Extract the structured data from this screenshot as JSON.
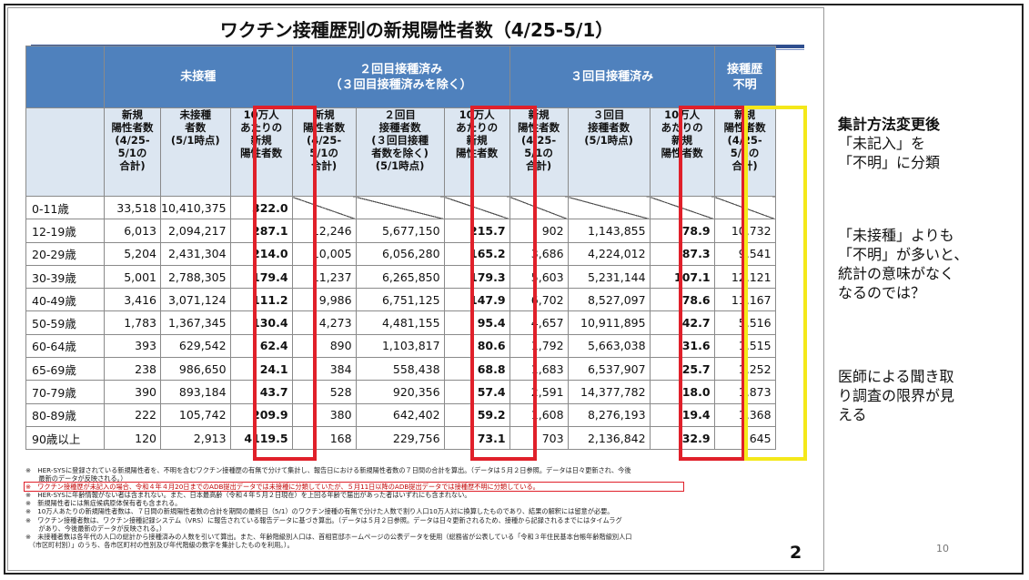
{
  "title": "ワクチン接種歴別の新規陽性者数（4/25-5/1）",
  "group_headers": {
    "unvax": "未接種",
    "dose2": "２回目接種済み\n（３回目接種済みを除く）",
    "dose3": "３回目接種済み",
    "unknown": "接種歴\n不明"
  },
  "sub_headers": {
    "unvax_new": "新規\n陽性者数\n(4/25-\n5/1の\n合計)",
    "unvax_pop": "未接種\n者数\n(5/1時点)",
    "unvax_rate": "10万人\nあたりの\n新規\n陽性者数",
    "dose2_new": "新規\n陽性者数\n(4/25-\n5/1の\n合計)",
    "dose2_pop": "２回目\n接種者数\n(３回目接種\n者数を除く)\n(5/1時点)",
    "dose2_rate": "10万人\nあたりの\n新規\n陽性者数",
    "dose3_new": "新規\n陽性者数\n(4/25-\n5/1の\n合計)",
    "dose3_pop": "３回目\n接種者数\n(5/1時点)",
    "dose3_rate": "10万人\nあたりの\n新規\n陽性者数",
    "unknown_new": "新規\n陽性者数\n(4/25-\n5/1の\n合計)"
  },
  "rows": [
    {
      "age": "0-11歳",
      "u_new": "33,518",
      "u_pop": "10,410,375",
      "u_rate": "322.0",
      "d2_new": "",
      "d2_pop": "",
      "d2_rate": "",
      "d3_new": "",
      "d3_pop": "",
      "d3_rate": "",
      "unk": ""
    },
    {
      "age": "12-19歳",
      "u_new": "6,013",
      "u_pop": "2,094,217",
      "u_rate": "287.1",
      "d2_new": "12,246",
      "d2_pop": "5,677,150",
      "d2_rate": "215.7",
      "d3_new": "902",
      "d3_pop": "1,143,855",
      "d3_rate": "78.9",
      "unk": "10,732"
    },
    {
      "age": "20-29歳",
      "u_new": "5,204",
      "u_pop": "2,431,304",
      "u_rate": "214.0",
      "d2_new": "10,005",
      "d2_pop": "6,056,280",
      "d2_rate": "165.2",
      "d3_new": "3,686",
      "d3_pop": "4,224,012",
      "d3_rate": "87.3",
      "unk": "9,541"
    },
    {
      "age": "30-39歳",
      "u_new": "5,001",
      "u_pop": "2,788,305",
      "u_rate": "179.4",
      "d2_new": "11,237",
      "d2_pop": "6,265,850",
      "d2_rate": "179.3",
      "d3_new": "5,603",
      "d3_pop": "5,231,144",
      "d3_rate": "107.1",
      "unk": "12,121"
    },
    {
      "age": "40-49歳",
      "u_new": "3,416",
      "u_pop": "3,071,124",
      "u_rate": "111.2",
      "d2_new": "9,986",
      "d2_pop": "6,751,125",
      "d2_rate": "147.9",
      "d3_new": "6,702",
      "d3_pop": "8,527,097",
      "d3_rate": "78.6",
      "unk": "11,167"
    },
    {
      "age": "50-59歳",
      "u_new": "1,783",
      "u_pop": "1,367,345",
      "u_rate": "130.4",
      "d2_new": "4,273",
      "d2_pop": "4,481,155",
      "d2_rate": "95.4",
      "d3_new": "4,657",
      "d3_pop": "10,911,895",
      "d3_rate": "42.7",
      "unk": "5,516"
    },
    {
      "age": "60-64歳",
      "u_new": "393",
      "u_pop": "629,542",
      "u_rate": "62.4",
      "d2_new": "890",
      "d2_pop": "1,103,817",
      "d2_rate": "80.6",
      "d3_new": "1,792",
      "d3_pop": "5,663,038",
      "d3_rate": "31.6",
      "unk": "1,515"
    },
    {
      "age": "65-69歳",
      "u_new": "238",
      "u_pop": "986,650",
      "u_rate": "24.1",
      "d2_new": "384",
      "d2_pop": "558,438",
      "d2_rate": "68.8",
      "d3_new": "1,683",
      "d3_pop": "6,537,907",
      "d3_rate": "25.7",
      "unk": "1,252"
    },
    {
      "age": "70-79歳",
      "u_new": "390",
      "u_pop": "893,184",
      "u_rate": "43.7",
      "d2_new": "528",
      "d2_pop": "920,356",
      "d2_rate": "57.4",
      "d3_new": "2,591",
      "d3_pop": "14,377,782",
      "d3_rate": "18.0",
      "unk": "1,873"
    },
    {
      "age": "80-89歳",
      "u_new": "222",
      "u_pop": "105,742",
      "u_rate": "209.9",
      "d2_new": "380",
      "d2_pop": "642,402",
      "d2_rate": "59.2",
      "d3_new": "1,608",
      "d3_pop": "8,276,193",
      "d3_rate": "19.4",
      "unk": "1,368"
    },
    {
      "age": "90歳以上",
      "u_new": "120",
      "u_pop": "2,913",
      "u_rate": "4119.5",
      "d2_new": "168",
      "d2_pop": "229,756",
      "d2_rate": "73.1",
      "d3_new": "703",
      "d3_pop": "2,136,842",
      "d3_rate": "32.9",
      "unk": "645"
    }
  ],
  "notes": [
    "※　HER-SYSに登録されている新規陽性者を、不明を含むワクチン接種歴の有無で分けて集計し、報告日における新規陽性者数の７日間の合計を算出。（データは５月２日参照。データは日々更新され、今後",
    "　　最新のデータが反映される。）",
    "※　ワクチン接種歴が未記入の場合、令和４年４月20日までのADB提出データでは未接種に分類していたが、５月11日以降のADB提出データでは接種歴不明に分類している。",
    "※　HER-SYSに年齢情報がない者は含まれない。また、日本最高齢（令和４年５月２日現在）を上回る年齢で届出があった者はいずれにも含まれない。",
    "※　新規陽性者には無症候病原体保有者も含まれる。",
    "※　10万人あたりの新規陽性者数は、７日間の新規陽性者数の合計を期間の最終日（5/1）のワクチン接種の有無で分けた人数で割り人口10万人対に換算したものであり、結果の解釈には留意が必要。",
    "※　ワクチン接種者数は、ワクチン接種記録システム（VRS）に報告されている報告データに基づき算出。（データは５月２日参照。データは日々更新されるため、接種から記録されるまでにはタイムラグ",
    "　　があり、今後最新のデータが反映される。）",
    "※　未接種者数は各年代の人口の総計から接種済みの人数を引いて算出。また、年齢階級別人口は、首相官邸ホームページの公表データを使用（総務省が公表している「令和３年住民基本台帳年齢階級別人口",
    "　（市区町村別）」のうち、各市区町村の性別及び年代階級の数字を集計したものを利用。）。"
  ],
  "page_number": "2",
  "slide_number": "10",
  "side_text": {
    "heading": "集計方法変更後",
    "line1": "「未記入」を",
    "line2": "「不明」に分類",
    "p2_1": "「未接種」よりも",
    "p2_2": "「不明」が多いと、",
    "p2_3": "統計の意味がなく",
    "p2_4": "なるのでは？",
    "p3_1": "医師による聞き取",
    "p3_2": "り調査の限界が見",
    "p3_3": "える"
  },
  "colors": {
    "header_blue": "#4f81bd",
    "subheader_light": "#dce6f1",
    "highlight_red": "#e0202a",
    "highlight_yellow": "#f4e81a"
  }
}
